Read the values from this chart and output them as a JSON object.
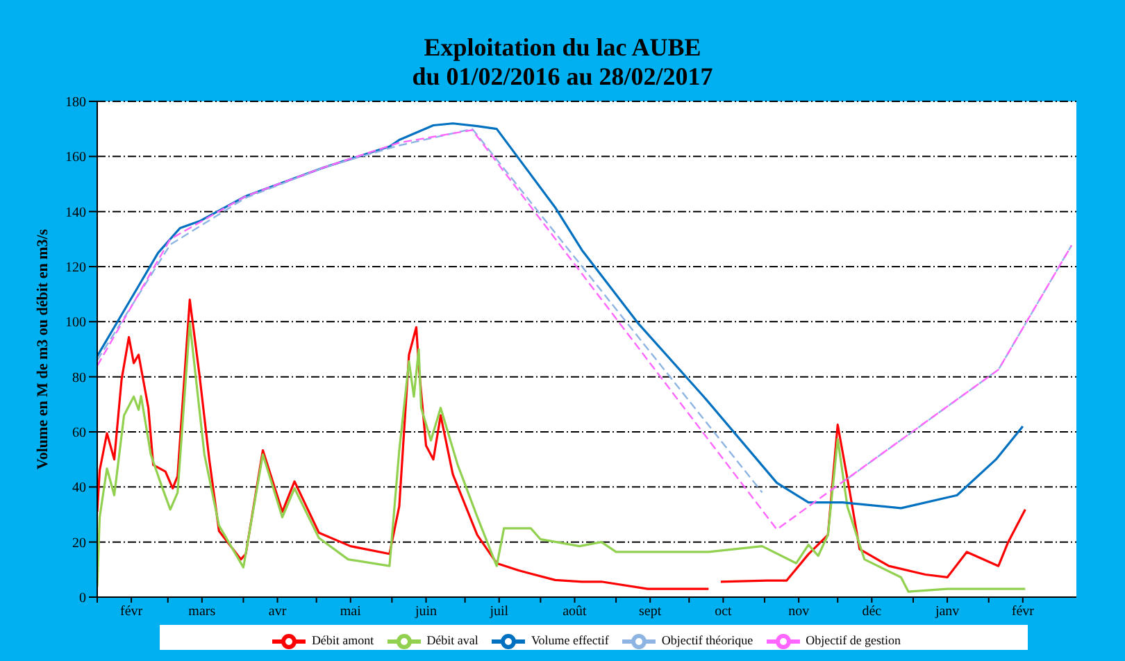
{
  "chart_data": {
    "type": "line",
    "title": "Exploitation du lac AUBE\ndu 01/02/2016 au 28/02/2017",
    "ylabel": "Volume en M de m3 ou débit en m3/s",
    "xlim": [
      "2016-02-01",
      "2017-03-09"
    ],
    "xticks": [
      {
        "value": "2016-02-01",
        "label": null
      },
      {
        "value": "2016-02-15",
        "label": "févr"
      },
      {
        "value": "2016-03-01",
        "label": null
      },
      {
        "value": "2016-03-15",
        "label": "mars"
      },
      {
        "value": "2016-04-01",
        "label": null
      },
      {
        "value": "2016-04-15",
        "label": "avr"
      },
      {
        "value": "2016-05-01",
        "label": null
      },
      {
        "value": "2016-05-15",
        "label": "mai"
      },
      {
        "value": "2016-06-01",
        "label": null
      },
      {
        "value": "2016-06-15",
        "label": "juin"
      },
      {
        "value": "2016-07-01",
        "label": null
      },
      {
        "value": "2016-07-15",
        "label": "juil"
      },
      {
        "value": "2016-08-01",
        "label": null
      },
      {
        "value": "2016-08-15",
        "label": "août"
      },
      {
        "value": "2016-09-01",
        "label": null
      },
      {
        "value": "2016-09-15",
        "label": "sept"
      },
      {
        "value": "2016-10-01",
        "label": null
      },
      {
        "value": "2016-10-15",
        "label": "oct"
      },
      {
        "value": "2016-11-01",
        "label": null
      },
      {
        "value": "2016-11-15",
        "label": "nov"
      },
      {
        "value": "2016-12-01",
        "label": null
      },
      {
        "value": "2016-12-15",
        "label": "déc"
      },
      {
        "value": "2017-01-01",
        "label": null
      },
      {
        "value": "2017-01-15",
        "label": "janv"
      },
      {
        "value": "2017-02-01",
        "label": null
      },
      {
        "value": "2017-02-15",
        "label": "févr"
      }
    ],
    "ylim": [
      0,
      180
    ],
    "yticks": [
      0,
      20,
      40,
      60,
      80,
      100,
      120,
      140,
      160,
      180
    ],
    "grid": "y",
    "legend": "bottom",
    "marker": "none",
    "series": [
      {
        "name": "Débit amont",
        "color": "#ff0000",
        "line_style": "solid",
        "x": [
          "2016-02-01",
          "2016-02-02",
          "2016-02-05",
          "2016-02-08",
          "2016-02-11",
          "2016-02-14",
          "2016-02-16",
          "2016-02-18",
          "2016-02-22",
          "2016-02-24",
          "2016-02-29",
          "2016-03-03",
          "2016-03-05",
          "2016-03-10",
          "2016-03-14",
          "2016-03-18",
          "2016-03-22",
          "2016-03-31",
          "2016-04-02",
          "2016-04-09",
          "2016-04-17",
          "2016-04-22",
          "2016-05-02",
          "2016-05-15",
          "2016-05-31",
          "2016-06-04",
          "2016-06-08",
          "2016-06-11",
          "2016-06-12",
          "2016-06-15",
          "2016-06-18",
          "2016-06-21",
          "2016-06-26",
          "2016-07-06",
          "2016-07-14",
          "2016-07-23",
          "2016-08-07",
          "2016-08-18",
          "2016-08-26",
          "2016-09-14",
          "2016-10-09",
          "2016-10-11",
          "2016-10-14",
          "2016-11-02",
          "2016-11-10",
          "2016-11-19",
          "2016-11-27",
          "2016-12-01",
          "2016-12-06",
          "2016-12-10",
          "2016-12-22",
          "2017-01-06",
          "2017-01-15",
          "2017-01-23",
          "2017-02-05",
          "2017-02-09",
          "2017-02-16"
        ],
        "values": [
          31,
          46,
          59.5,
          50,
          79,
          94.4,
          85,
          88,
          68.7,
          48,
          45.6,
          39.5,
          44,
          108,
          80.5,
          50,
          24,
          13.7,
          15.7,
          53.3,
          31,
          42,
          23.4,
          18.5,
          15.7,
          33,
          88,
          98,
          84,
          55,
          50,
          66,
          44.6,
          22.6,
          12.3,
          9.7,
          6.2,
          5.6,
          5.6,
          3,
          3,
          null,
          5.6,
          6,
          6,
          15.6,
          22.6,
          62.6,
          38,
          17.4,
          11.3,
          8.2,
          7.2,
          16.4,
          11.3,
          20,
          31.8
        ]
      },
      {
        "name": "Débit aval",
        "color": "#92d050",
        "line_style": "solid",
        "x": [
          "2016-02-01",
          "2016-02-02",
          "2016-02-05",
          "2016-02-08",
          "2016-02-12",
          "2016-02-16",
          "2016-02-18",
          "2016-02-19",
          "2016-02-23",
          "2016-02-27",
          "2016-03-02",
          "2016-03-05",
          "2016-03-10",
          "2016-03-16",
          "2016-03-22",
          "2016-04-01",
          "2016-04-09",
          "2016-04-17",
          "2016-04-22",
          "2016-05-02",
          "2016-05-14",
          "2016-05-31",
          "2016-06-04",
          "2016-06-08",
          "2016-06-10",
          "2016-06-12",
          "2016-06-13",
          "2016-06-17",
          "2016-06-21",
          "2016-06-28",
          "2016-07-06",
          "2016-07-14",
          "2016-07-17",
          "2016-07-28",
          "2016-08-01",
          "2016-08-17",
          "2016-08-26",
          "2016-09-01",
          "2016-10-09",
          "2016-10-31",
          "2016-11-14",
          "2016-11-19",
          "2016-11-23",
          "2016-11-27",
          "2016-12-01",
          "2016-12-05",
          "2016-12-12",
          "2016-12-27",
          "2016-12-30",
          "2017-01-15",
          "2017-02-16"
        ],
        "values": [
          3.6,
          29,
          46.7,
          37,
          66,
          72.8,
          68,
          73,
          51.8,
          41.5,
          31.8,
          38,
          99.5,
          51.8,
          26,
          10.8,
          51.8,
          29,
          39.5,
          21.5,
          13.7,
          11.3,
          53.3,
          85.6,
          72.8,
          90,
          68.7,
          56.9,
          68.7,
          48,
          29.2,
          11.3,
          25,
          25,
          21,
          18.5,
          20,
          16.4,
          16.4,
          18.5,
          12.3,
          19,
          15,
          22.6,
          57.4,
          32.8,
          13.7,
          7.2,
          2,
          3,
          3
        ]
      },
      {
        "name": "Volume effectif",
        "color": "#0070c0",
        "line_style": "solid",
        "x": [
          "2016-02-01",
          "2016-02-08",
          "2016-02-18",
          "2016-02-26",
          "2016-03-06",
          "2016-03-14",
          "2016-04-02",
          "2016-05-04",
          "2016-05-31",
          "2016-06-04",
          "2016-06-18",
          "2016-06-26",
          "2016-07-06",
          "2016-07-14",
          "2016-08-07",
          "2016-08-18",
          "2016-09-10",
          "2016-10-07",
          "2016-11-06",
          "2016-11-19",
          "2016-12-03",
          "2016-12-27",
          "2017-01-19",
          "2017-02-04",
          "2017-02-15"
        ],
        "values": [
          87.5,
          98,
          113,
          125,
          134,
          136.5,
          145.6,
          156,
          163.6,
          166,
          171.3,
          172,
          171,
          170,
          141.5,
          126,
          99.5,
          72.8,
          41.5,
          34.4,
          34.4,
          32.3,
          37,
          50,
          62
        ]
      },
      {
        "name": "Objectif théorique",
        "color": "#8db4e2",
        "line_style": "dashed",
        "x": [
          "2016-02-01",
          "2016-03-02",
          "2016-04-02",
          "2016-05-04",
          "2016-06-04",
          "2016-07-04",
          "2016-10-31",
          "2016-11-15",
          "2016-12-05",
          "2017-02-05",
          "2017-03-07"
        ],
        "values": [
          86,
          128,
          145,
          156,
          164,
          170,
          38,
          null,
          43,
          82.6,
          127.7
        ]
      },
      {
        "name": "Objectif de gestion",
        "color": "#ff66ff",
        "line_style": "dashed",
        "x": [
          "2016-02-01",
          "2016-03-02",
          "2016-04-02",
          "2016-05-04",
          "2016-06-04",
          "2016-07-04",
          "2016-11-06",
          "2017-02-05",
          "2017-03-07"
        ],
        "values": [
          84,
          130,
          145.6,
          156,
          165,
          169.6,
          24.6,
          82.6,
          127.7
        ]
      }
    ]
  }
}
